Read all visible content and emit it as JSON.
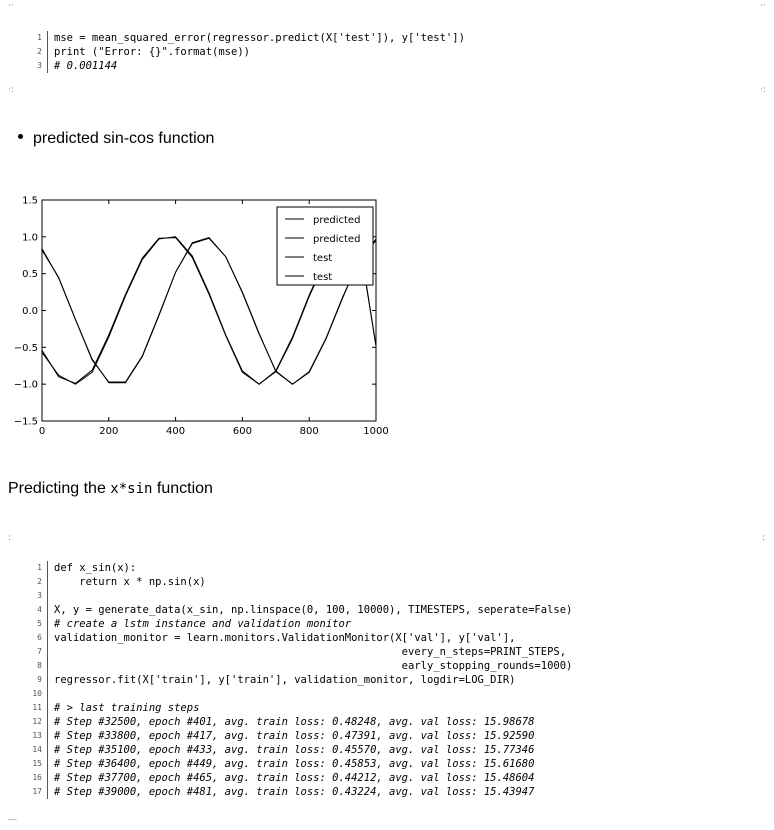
{
  "code_block_1": {
    "lines": [
      {
        "n": "1",
        "text": "mse = mean_squared_error(regressor.predict(X['test']), y['test'])",
        "comment": false
      },
      {
        "n": "2",
        "text": "print (\"Error: {}\".format(mse))",
        "comment": false
      },
      {
        "n": "3",
        "text": "# 0.001144",
        "comment": true
      }
    ]
  },
  "bullet_heading": "predicted sin-cos function",
  "section_heading": {
    "prefix": "Predicting the ",
    "mono": "x*sin",
    "suffix": " function"
  },
  "chart_data": {
    "type": "line",
    "x_ticks": [
      "0",
      "200",
      "400",
      "600",
      "800",
      "1000"
    ],
    "y_ticks": [
      "1.5",
      "1.0",
      "0.5",
      "0.0",
      "−0.5",
      "−1.0",
      "−1.5"
    ],
    "xlim": [
      0,
      1000
    ],
    "ylim": [
      -1.5,
      1.5
    ],
    "legend_position": "top-right",
    "legend": [
      "predicted",
      "predicted",
      "test",
      "test"
    ],
    "series": [
      {
        "name": "predicted",
        "x": [
          0,
          50,
          100,
          150,
          200,
          250,
          300,
          350,
          400,
          450,
          500,
          550,
          600,
          650,
          700,
          750,
          800,
          850,
          900,
          950,
          1000
        ],
        "values": [
          0.82,
          0.45,
          -0.12,
          -0.67,
          -0.97,
          -0.97,
          -0.62,
          -0.06,
          0.52,
          0.91,
          0.98,
          0.73,
          0.24,
          -0.32,
          -0.82,
          -1.0,
          -0.83,
          -0.38,
          0.18,
          0.68,
          0.97
        ]
      },
      {
        "name": "predicted",
        "x": [
          0,
          50,
          100,
          150,
          200,
          250,
          300,
          350,
          400,
          450,
          500,
          550,
          600,
          650,
          700,
          750,
          800,
          850,
          900,
          950,
          1000
        ],
        "values": [
          -0.57,
          -0.88,
          -1.0,
          -0.84,
          -0.36,
          0.2,
          0.69,
          0.97,
          1.0,
          0.74,
          0.24,
          -0.33,
          -0.82,
          -1.0,
          -0.83,
          -0.38,
          0.19,
          0.69,
          0.98,
          0.96,
          -0.48
        ]
      },
      {
        "name": "test",
        "x": [
          0,
          50,
          100,
          150,
          200,
          250,
          300,
          350,
          400,
          450,
          500,
          550,
          600,
          650,
          700,
          750,
          800,
          850,
          900,
          950,
          1000
        ],
        "values": [
          0.84,
          0.44,
          -0.12,
          -0.66,
          -0.98,
          -0.98,
          -0.63,
          -0.07,
          0.52,
          0.92,
          0.99,
          0.73,
          0.25,
          -0.31,
          -0.83,
          -1.0,
          -0.84,
          -0.39,
          0.17,
          0.69,
          0.95
        ]
      },
      {
        "name": "test",
        "x": [
          0,
          50,
          100,
          150,
          200,
          250,
          300,
          350,
          400,
          450,
          500,
          550,
          600,
          650,
          700,
          750,
          800,
          850,
          900,
          950,
          1000
        ],
        "values": [
          -0.54,
          -0.9,
          -0.99,
          -0.81,
          -0.33,
          0.22,
          0.71,
          0.98,
          0.99,
          0.72,
          0.22,
          -0.34,
          -0.84,
          -1.0,
          -0.82,
          -0.36,
          0.21,
          0.7,
          0.97,
          0.93,
          -0.48
        ]
      }
    ]
  },
  "code_block_2": {
    "lines": [
      {
        "n": "1",
        "text": "def x_sin(x):",
        "comment": false
      },
      {
        "n": "2",
        "text": "    return x * np.sin(x)",
        "comment": false
      },
      {
        "n": "3",
        "text": "",
        "comment": false
      },
      {
        "n": "4",
        "text": "X, y = generate_data(x_sin, np.linspace(0, 100, 10000), TIMESTEPS, seperate=False)",
        "comment": false
      },
      {
        "n": "5",
        "text": "# create a lstm instance and validation monitor",
        "comment": true
      },
      {
        "n": "6",
        "text": "validation_monitor = learn.monitors.ValidationMonitor(X['val'], y['val'],",
        "comment": false
      },
      {
        "n": "7",
        "text": "                                                       every_n_steps=PRINT_STEPS,",
        "comment": false
      },
      {
        "n": "8",
        "text": "                                                       early_stopping_rounds=1000)",
        "comment": false
      },
      {
        "n": "9",
        "text": "regressor.fit(X['train'], y['train'], validation_monitor, logdir=LOG_DIR)",
        "comment": false
      },
      {
        "n": "10",
        "text": "",
        "comment": false
      },
      {
        "n": "11",
        "text": "# > last training steps",
        "comment": true
      },
      {
        "n": "12",
        "text": "# Step #32500, epoch #401, avg. train loss: 0.48248, avg. val loss: 15.98678",
        "comment": true
      },
      {
        "n": "13",
        "text": "# Step #33800, epoch #417, avg. train loss: 0.47391, avg. val loss: 15.92590",
        "comment": true
      },
      {
        "n": "14",
        "text": "# Step #35100, epoch #433, avg. train loss: 0.45570, avg. val loss: 15.77346",
        "comment": true
      },
      {
        "n": "15",
        "text": "# Step #36400, epoch #449, avg. train loss: 0.45853, avg. val loss: 15.61680",
        "comment": true
      },
      {
        "n": "16",
        "text": "# Step #37700, epoch #465, avg. train loss: 0.44212, avg. val loss: 15.48604",
        "comment": true
      },
      {
        "n": "17",
        "text": "# Step #39000, epoch #481, avg. train loss: 0.43224, avg. val loss: 15.43947",
        "comment": true
      }
    ]
  }
}
